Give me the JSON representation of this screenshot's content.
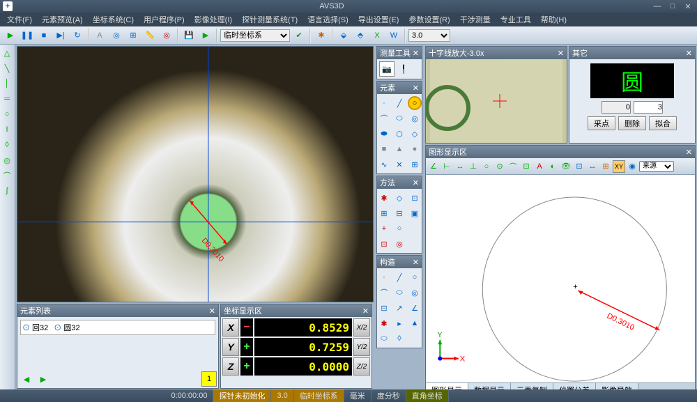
{
  "app": {
    "title": "AVS3D"
  },
  "menu": {
    "items": [
      "文件(F)",
      "元素预览(A)",
      "坐标系统(C)",
      "用户程序(P)",
      "影像处理(I)",
      "探针测量系统(T)",
      "语言选择(S)",
      "导出设置(E)",
      "参数设置(R)",
      "干涉测量",
      "专业工具",
      "帮助(H)"
    ]
  },
  "toolbar": {
    "coord_sys": "临时坐标系",
    "zoom": "3.0"
  },
  "elem_list": {
    "title": "元素列表",
    "items": [
      {
        "icon": "circle",
        "label": "回32"
      },
      {
        "icon": "circle",
        "label": "圆32"
      }
    ]
  },
  "coord_panel": {
    "title": "坐标显示区",
    "rows": [
      {
        "axis": "X",
        "sign": "−",
        "value": "0.8529",
        "half": "X/2",
        "sign_color": "#ff4444"
      },
      {
        "axis": "Y",
        "sign": "+",
        "value": "0.7259",
        "half": "Y/2",
        "sign_color": "#44ff44"
      },
      {
        "axis": "Z",
        "sign": "+",
        "value": "0.0000",
        "half": "Z/2",
        "sign_color": "#44ff44"
      }
    ]
  },
  "measure_tools": {
    "title": "测量工具"
  },
  "elements_panel": {
    "title": "元素"
  },
  "methods_panel": {
    "title": "方法"
  },
  "construct_panel": {
    "title": "构造"
  },
  "crosshair": {
    "title": "十字线放大-3.0x"
  },
  "other": {
    "title": "其它",
    "big_label": "圆",
    "val1": "0",
    "val2": "3",
    "btns": [
      "采点",
      "删除",
      "拟合"
    ]
  },
  "graphic": {
    "title": "图形显示区",
    "dropdown": "来源",
    "tabs": [
      "图形显示",
      "数据显示",
      "元素复制",
      "位置公差",
      "影像导航"
    ],
    "active_tab": 0,
    "dim_label": "D0.3010"
  },
  "video": {
    "dim_label": "D0.3010",
    "colors": {
      "outer_bg": "#3a3220",
      "ring_outer": "#998855",
      "ring_mid": "#ddddcc",
      "ring_inner": "#aabb77",
      "hole": "#88dd88",
      "crosshair": "#0044dd",
      "arrow": "#ff0000"
    }
  },
  "status": {
    "time": "0:00:00:00",
    "probe": "探针未初始化",
    "val": "3.0",
    "coordsys": "临时坐标系",
    "unit": "毫米",
    "angle": "度分秒",
    "coord_type": "直角坐标"
  }
}
